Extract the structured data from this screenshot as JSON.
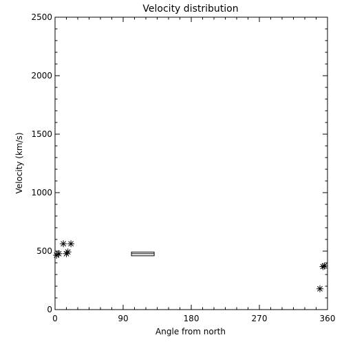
{
  "chart_data": {
    "type": "scatter",
    "title": "Velocity distribution",
    "xlabel": "Angle from north",
    "ylabel": "Velocity (km/s)",
    "xlim": [
      0,
      360
    ],
    "ylim": [
      0,
      2500
    ],
    "xticks": [
      0,
      90,
      180,
      270,
      360
    ],
    "xtick_labels": [
      "0",
      "90",
      "180",
      "270",
      "360"
    ],
    "yticks": [
      0,
      500,
      1000,
      1500,
      2000,
      2500
    ],
    "ytick_labels": [
      "0",
      "500",
      "1000",
      "1500",
      "2000",
      "2500"
    ],
    "grid": false,
    "marker": "asterisk",
    "points": [
      {
        "x": 2,
        "y": 465
      },
      {
        "x": 5,
        "y": 478
      },
      {
        "x": 11,
        "y": 563
      },
      {
        "x": 15,
        "y": 478
      },
      {
        "x": 17,
        "y": 493
      },
      {
        "x": 21,
        "y": 563
      },
      {
        "x": 350,
        "y": 178
      },
      {
        "x": 354,
        "y": 368
      },
      {
        "x": 356,
        "y": 373
      }
    ],
    "rectangles": [
      {
        "x0": 101,
        "x1": 131,
        "y0": 460,
        "y1": 492,
        "mid_y": 478
      }
    ]
  }
}
